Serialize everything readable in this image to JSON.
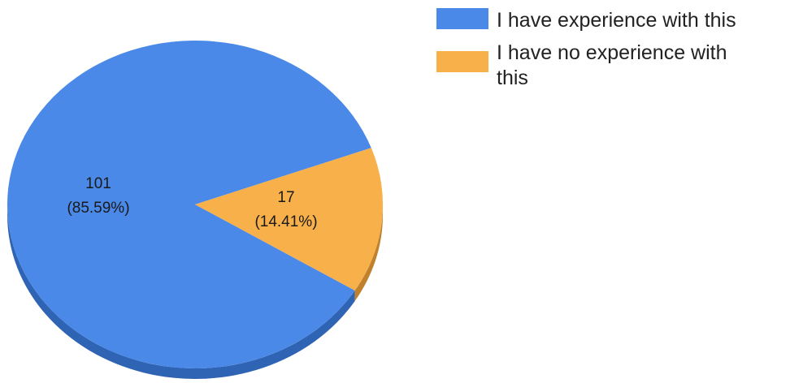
{
  "chart_data": {
    "type": "pie",
    "title": "",
    "three_d": true,
    "legend_position": "top-right",
    "slices": [
      {
        "name": "I have experience with this",
        "value": 101,
        "percent_label": "(85.59%)",
        "color": "#4a89e8",
        "side_color": "#2f63b3"
      },
      {
        "name": "I have no experience with this",
        "value": 17,
        "percent_label": "(14.41%)",
        "color": "#f8b04a",
        "side_color": "#c0812c"
      }
    ],
    "legend": [
      {
        "lines": [
          "I have experience with this"
        ]
      },
      {
        "lines": [
          "I have no experience with",
          "this"
        ]
      }
    ]
  }
}
